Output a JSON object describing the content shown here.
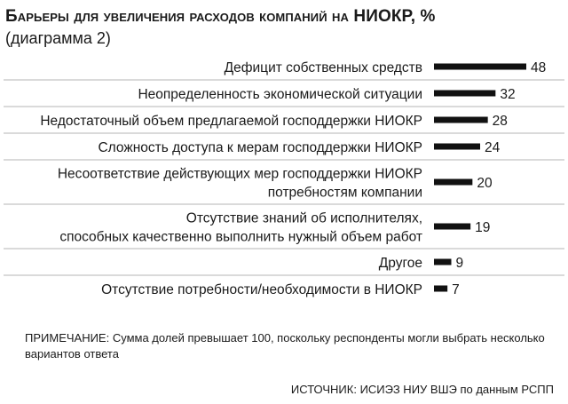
{
  "title": "Барьеры для увеличения расходов компаний на НИОКР, %",
  "subtitle": "(диаграмма 2)",
  "note": "ПРИМЕЧАНИЕ: Сумма долей превышает 100, поскольку респонденты могли выбрать несколько вариантов ответа",
  "source": "ИСТОЧНИК: ИСИЭЗ НИУ ВШЭ по данным РСПП",
  "colors": {
    "bar": "#111111",
    "separator": "#b5b5b5",
    "text": "#1a1a1a"
  },
  "chart_data": {
    "type": "bar",
    "orientation": "horizontal",
    "title": "Барьеры для увеличения расходов компаний на НИОКР, %",
    "categories": [
      [
        "Дефицит собственных средств"
      ],
      [
        "Неопределенность экономической ситуации"
      ],
      [
        "Недостаточный объем предлагаемой господдержки НИОКР"
      ],
      [
        "Сложность доступа к мерам господдержки НИОКР"
      ],
      [
        "Несоответствие действующих мер господдержки НИОКР",
        "потребностям компании"
      ],
      [
        "Отсутствие знаний об исполнителях,",
        "способных качественно выполнить нужный объем работ"
      ],
      [
        "Другое"
      ],
      [
        "Отсутствие потребности/необходимости в НИОКР"
      ]
    ],
    "values": [
      48,
      32,
      28,
      24,
      20,
      19,
      9,
      7
    ],
    "data_labels": [
      "48",
      "32",
      "28",
      "24",
      "20",
      "19",
      "9",
      "7"
    ],
    "xlim": [
      0,
      48
    ],
    "grid": false,
    "legend": "none"
  }
}
